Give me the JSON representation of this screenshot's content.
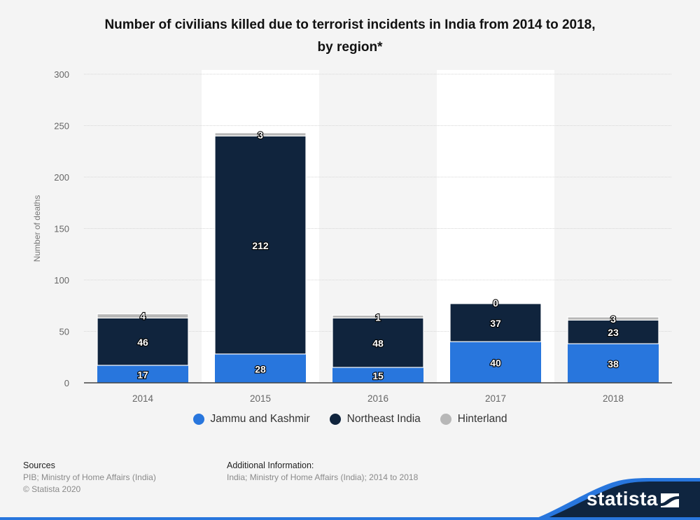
{
  "chart_data": {
    "type": "bar",
    "stacked": true,
    "title": "Number of civilians killed due to terrorist incidents in India from 2014 to 2018, by region*",
    "title_lines": [
      "Number of civilians killed due to terrorist incidents in India from 2014 to 2018,",
      "by region*"
    ],
    "xlabel": "",
    "ylabel": "Number of deaths",
    "ylim": [
      0,
      300
    ],
    "yticks": [
      0,
      50,
      100,
      150,
      200,
      250,
      300
    ],
    "grid": true,
    "legend_position": "bottom",
    "categories": [
      "2014",
      "2015",
      "2016",
      "2017",
      "2018"
    ],
    "series": [
      {
        "name": "Jammu and Kashmir",
        "color": "#2876dd",
        "values": [
          17,
          28,
          15,
          40,
          38
        ]
      },
      {
        "name": "Northeast India",
        "color": "#10243d",
        "values": [
          46,
          212,
          48,
          37,
          23
        ]
      },
      {
        "name": "Hinterland",
        "color": "#b7b7b7",
        "values": [
          4,
          3,
          1,
          0,
          3
        ]
      }
    ]
  },
  "footer": {
    "sources_heading": "Sources",
    "sources_lines": [
      "PIB; Ministry of Home Affairs (India)",
      "© Statista 2020"
    ],
    "additional_heading": "Additional Information:",
    "additional_lines": [
      "India; Ministry of Home Affairs (India); 2014 to 2018"
    ]
  },
  "brand": {
    "name": "statista",
    "logo_icon": "statista-logo-icon",
    "colors": {
      "dark": "#0f2540",
      "accent": "#2876dd"
    }
  }
}
